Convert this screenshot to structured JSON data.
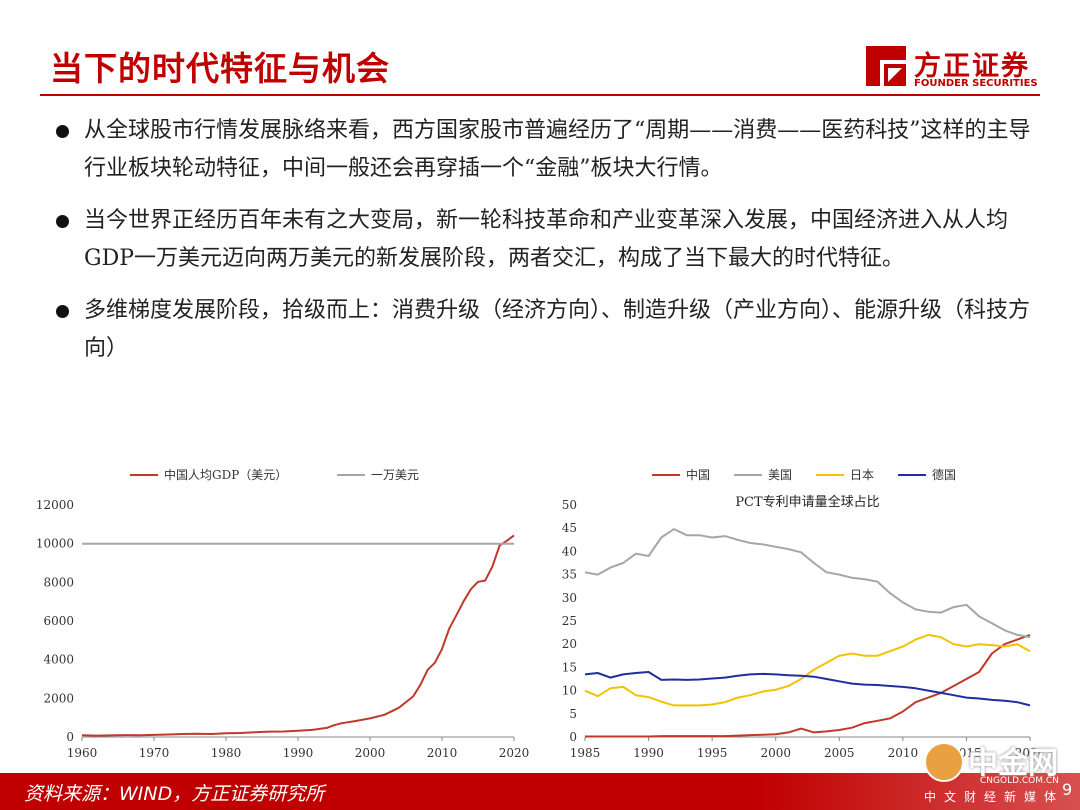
{
  "header": {
    "title": "当下的时代特征与机会",
    "logo_cn": "方正证券",
    "logo_en": "FOUNDER SECURITIES"
  },
  "bullets": [
    "从全球股市行情发展脉络来看，西方国家股市普遍经历了“周期——消费——医药科技”这样的主导行业板块轮动特征，中间一般还会再穿插一个“金融”板块大行情。",
    "当今世界正经历百年未有之大变局，新一轮科技革命和产业变革深入发展，中国经济进入从人均GDP一万美元迈向两万美元的新发展阶段，两者交汇，构成了当下最大的时代特征。",
    "多维梯度发展阶段，拾级而上：消费升级（经济方向）、制造升级（产业方向）、能源升级（科技方向）"
  ],
  "footer": {
    "source": "资料来源：WIND，方正证券研究所",
    "watermark_main": "中金网",
    "watermark_url": "CNGOLD.COM.CN",
    "watermark_sub": "中文财经新媒体",
    "page": "9"
  },
  "colors": {
    "accent": "#c00000",
    "china": "#c0392b",
    "usa": "#a6a6a6",
    "japan": "#f2c200",
    "germany": "#1f2f9f"
  },
  "chart_data": [
    {
      "type": "line",
      "title": "",
      "xlabel": "",
      "ylabel": "",
      "xlim": [
        1960,
        2020
      ],
      "ylim": [
        0,
        12000
      ],
      "xticks": [
        1960,
        1970,
        1980,
        1990,
        2000,
        2010,
        2020
      ],
      "yticks": [
        0,
        2000,
        4000,
        6000,
        8000,
        10000,
        12000
      ],
      "legend_position": "top",
      "series": [
        {
          "name": "中国人均GDP（美元）",
          "color": "#c0392b",
          "x": [
            1960,
            1962,
            1964,
            1966,
            1968,
            1970,
            1972,
            1974,
            1976,
            1978,
            1980,
            1982,
            1984,
            1986,
            1988,
            1990,
            1992,
            1994,
            1995,
            1996,
            1998,
            2000,
            2002,
            2004,
            2006,
            2007,
            2008,
            2009,
            2010,
            2011,
            2012,
            2013,
            2014,
            2015,
            2016,
            2017,
            2018,
            2019,
            2020
          ],
          "y": [
            90,
            70,
            85,
            100,
            90,
            110,
            130,
            155,
            165,
            155,
            195,
            205,
            250,
            280,
            285,
            320,
            365,
            470,
            610,
            710,
            830,
            960,
            1150,
            1510,
            2100,
            2700,
            3470,
            3840,
            4550,
            5600,
            6300,
            7020,
            7640,
            8030,
            8090,
            8820,
            9900,
            10150,
            10430
          ]
        },
        {
          "name": "一万美元",
          "color": "#a6a6a6",
          "x": [
            1960,
            2020
          ],
          "y": [
            10000,
            10000
          ]
        }
      ]
    },
    {
      "type": "line",
      "title": "PCT专利申请量全球占比",
      "xlabel": "",
      "ylabel": "",
      "xlim": [
        1985,
        2020
      ],
      "ylim": [
        0,
        50
      ],
      "xticks": [
        1985,
        1990,
        1995,
        2000,
        2005,
        2010,
        2015,
        2020
      ],
      "yticks": [
        0,
        5,
        10,
        15,
        20,
        25,
        30,
        35,
        40,
        45,
        50
      ],
      "legend_position": "top",
      "x": [
        1985,
        1986,
        1987,
        1988,
        1989,
        1990,
        1991,
        1992,
        1993,
        1994,
        1995,
        1996,
        1997,
        1998,
        1999,
        2000,
        2001,
        2002,
        2003,
        2004,
        2005,
        2006,
        2007,
        2008,
        2009,
        2010,
        2011,
        2012,
        2013,
        2014,
        2015,
        2016,
        2017,
        2018,
        2019,
        2020
      ],
      "series": [
        {
          "name": "中国",
          "color": "#c0392b",
          "y": [
            0.1,
            0.1,
            0.1,
            0.1,
            0.1,
            0.1,
            0.2,
            0.2,
            0.2,
            0.2,
            0.2,
            0.2,
            0.3,
            0.4,
            0.5,
            0.6,
            1.0,
            1.8,
            1.0,
            1.2,
            1.5,
            2.0,
            3.0,
            3.5,
            4.0,
            5.5,
            7.5,
            8.5,
            9.5,
            11.0,
            12.5,
            14.0,
            18.0,
            20.0,
            21.0,
            22.0
          ]
        },
        {
          "name": "美国",
          "color": "#a6a6a6",
          "y": [
            35.5,
            35.0,
            36.5,
            37.5,
            39.5,
            39.0,
            43.0,
            44.8,
            43.5,
            43.5,
            43.0,
            43.3,
            42.5,
            41.8,
            41.5,
            41.0,
            40.5,
            39.8,
            37.5,
            35.5,
            35.0,
            34.3,
            34.0,
            33.5,
            31.0,
            29.0,
            27.5,
            27.0,
            26.8,
            28.0,
            28.5,
            26.0,
            24.5,
            23.0,
            22.0,
            21.5
          ]
        },
        {
          "name": "日本",
          "color": "#f2c200",
          "y": [
            10.0,
            8.8,
            10.5,
            10.8,
            9.0,
            8.6,
            7.6,
            6.8,
            6.8,
            6.8,
            7.0,
            7.5,
            8.5,
            9.0,
            9.8,
            10.2,
            11.0,
            12.5,
            14.5,
            16.0,
            17.5,
            18.0,
            17.5,
            17.5,
            18.5,
            19.5,
            21.0,
            22.0,
            21.5,
            20.0,
            19.5,
            20.0,
            19.8,
            19.5,
            20.0,
            18.5
          ]
        },
        {
          "name": "德国",
          "color": "#1f2f9f",
          "y": [
            13.5,
            13.8,
            12.8,
            13.5,
            13.8,
            14.0,
            12.3,
            12.4,
            12.3,
            12.4,
            12.6,
            12.8,
            13.2,
            13.5,
            13.6,
            13.5,
            13.3,
            13.2,
            13.0,
            12.5,
            12.0,
            11.5,
            11.3,
            11.2,
            11.0,
            10.8,
            10.5,
            10.0,
            9.5,
            9.0,
            8.5,
            8.3,
            8.0,
            7.8,
            7.5,
            6.8
          ]
        }
      ]
    }
  ]
}
